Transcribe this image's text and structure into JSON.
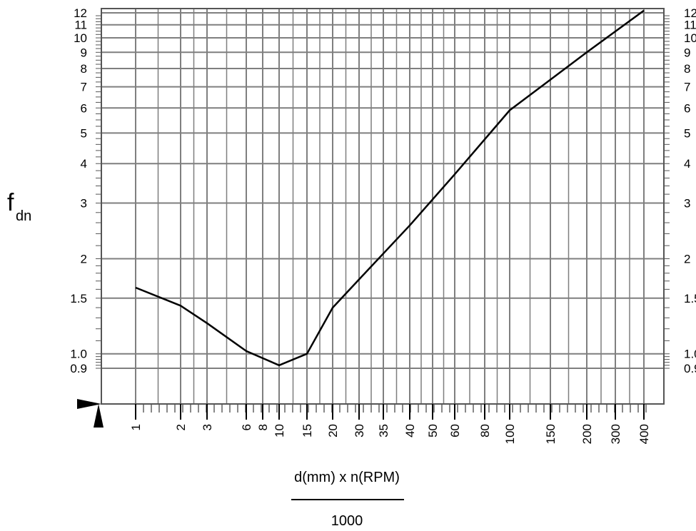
{
  "chart_data": {
    "type": "line",
    "title": "",
    "ylabel_main": "f",
    "ylabel_sub": "dn",
    "xlabel_numerator": "d(mm) x n(RPM)",
    "xlabel_denominator": "1000",
    "x_scale": "nonuniform-log",
    "y_scale": "log",
    "grid": true,
    "ylim": [
      0.8,
      12
    ],
    "x_ticks": [
      "1",
      "2",
      "3",
      "6",
      "8",
      "10",
      "15",
      "20",
      "30",
      "35",
      "40",
      "50",
      "60",
      "80",
      "100",
      "150",
      "200",
      "300",
      "400"
    ],
    "y_ticks": [
      "0.9",
      "1.0",
      "1.5",
      "2",
      "3",
      "4",
      "5",
      "6",
      "7",
      "8",
      "9",
      "10",
      "11",
      "12"
    ],
    "series": [
      {
        "x": [
          1,
          2,
          3,
          6,
          10,
          15,
          20,
          30,
          40,
          60,
          100,
          200,
          400
        ],
        "y": [
          1.62,
          1.42,
          1.25,
          1.02,
          0.92,
          1.0,
          1.4,
          1.72,
          2.55,
          3.7,
          5.9,
          9.0,
          12.2
        ]
      }
    ],
    "colors": {
      "line": "#000000",
      "grid": "#7f7f7f",
      "axis": "#555555"
    }
  }
}
